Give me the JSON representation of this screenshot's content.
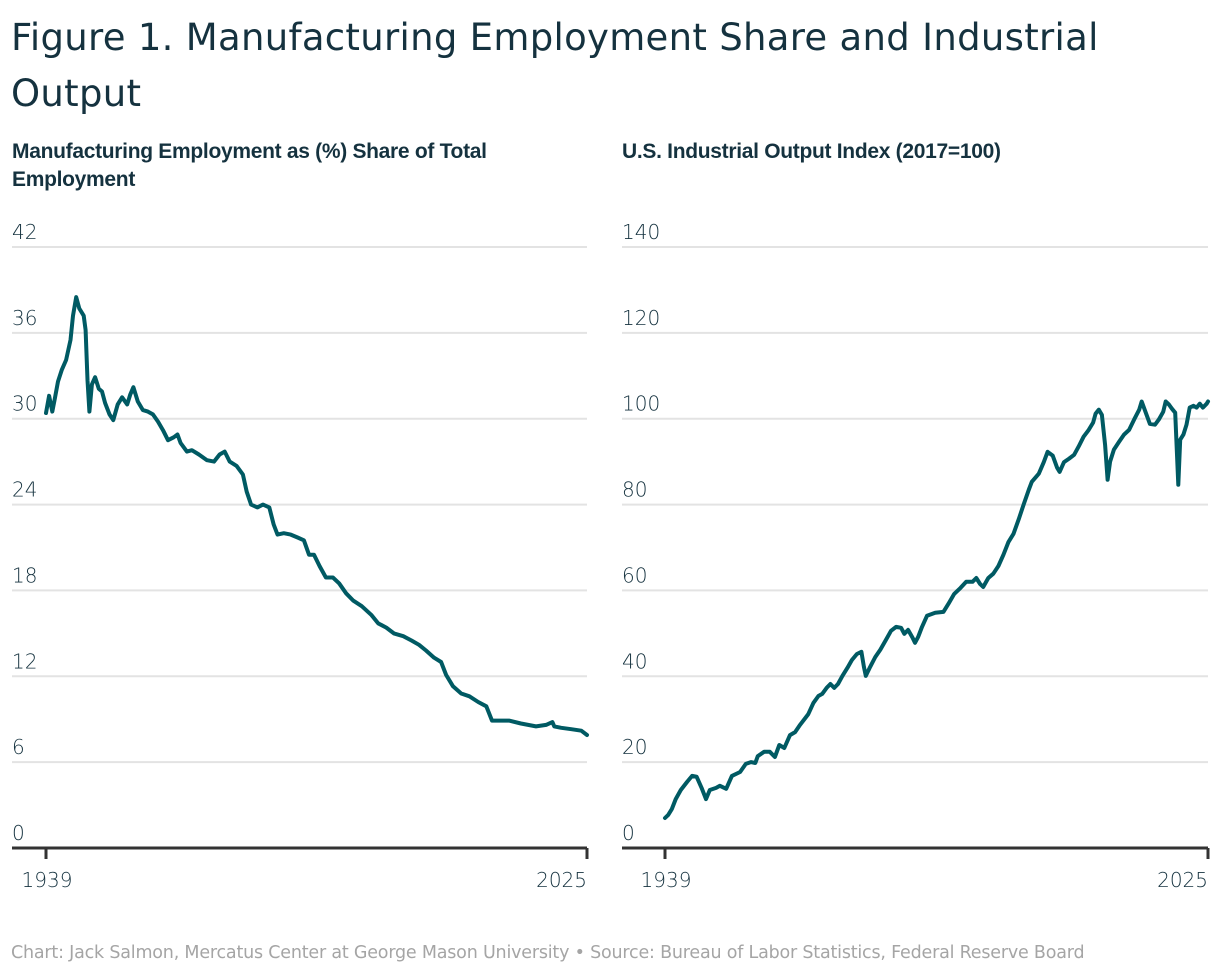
{
  "title": "Figure 1. Manufacturing Employment Share and Industrial Output",
  "footer": {
    "credit": "Chart: Jack Salmon, Mercatus Center at George Mason University",
    "separator": "•",
    "source": "Source: Bureau of Labor Statistics, Federal Reserve Board"
  },
  "colors": {
    "series": "#005a63",
    "title": "#15323f",
    "grid": "#e3e3e3",
    "axis": "#333333",
    "footer": "#a5a5a5"
  },
  "chart_data": [
    {
      "type": "line",
      "title": "Manufacturing Employment as (%) Share of Total Employment",
      "xlabel": "",
      "ylabel": "",
      "xlim": [
        1939,
        2025
      ],
      "ylim": [
        0,
        42
      ],
      "x_ticks": [
        1939,
        2025
      ],
      "y_ticks": [
        0,
        6,
        12,
        18,
        24,
        30,
        36,
        42
      ],
      "grid": true,
      "legend": "none",
      "series": [
        {
          "name": "Manufacturing employment share (%)",
          "points": [
            [
              1939.0,
              30.4
            ],
            [
              1939.5,
              31.6
            ],
            [
              1940.0,
              30.5
            ],
            [
              1940.4,
              31.4
            ],
            [
              1940.9,
              32.6
            ],
            [
              1941.5,
              33.4
            ],
            [
              1942.2,
              34.1
            ],
            [
              1942.9,
              35.5
            ],
            [
              1943.3,
              37.2
            ],
            [
              1943.8,
              38.5
            ],
            [
              1944.3,
              37.7
            ],
            [
              1945.0,
              37.2
            ],
            [
              1945.3,
              36.2
            ],
            [
              1945.6,
              32.7
            ],
            [
              1945.9,
              30.5
            ],
            [
              1946.3,
              32.4
            ],
            [
              1946.8,
              32.9
            ],
            [
              1947.4,
              32.1
            ],
            [
              1947.9,
              31.9
            ],
            [
              1948.4,
              31.1
            ],
            [
              1949.1,
              30.3
            ],
            [
              1949.7,
              29.9
            ],
            [
              1950.4,
              31.0
            ],
            [
              1951.1,
              31.5
            ],
            [
              1951.9,
              31.0
            ],
            [
              1952.4,
              31.7
            ],
            [
              1952.9,
              32.2
            ],
            [
              1953.6,
              31.2
            ],
            [
              1954.4,
              30.6
            ],
            [
              1955.2,
              30.5
            ],
            [
              1956.0,
              30.3
            ],
            [
              1956.8,
              29.8
            ],
            [
              1957.6,
              29.2
            ],
            [
              1958.4,
              28.5
            ],
            [
              1959.3,
              28.7
            ],
            [
              1959.9,
              28.9
            ],
            [
              1960.4,
              28.3
            ],
            [
              1961.4,
              27.7
            ],
            [
              1962.2,
              27.8
            ],
            [
              1963.3,
              27.5
            ],
            [
              1964.6,
              27.1
            ],
            [
              1965.7,
              27.0
            ],
            [
              1966.6,
              27.5
            ],
            [
              1967.4,
              27.7
            ],
            [
              1968.2,
              27.0
            ],
            [
              1969.3,
              26.7
            ],
            [
              1970.3,
              26.1
            ],
            [
              1970.9,
              24.9
            ],
            [
              1971.6,
              24.0
            ],
            [
              1972.6,
              23.8
            ],
            [
              1973.5,
              24.0
            ],
            [
              1974.5,
              23.8
            ],
            [
              1975.2,
              22.6
            ],
            [
              1975.8,
              21.9
            ],
            [
              1976.8,
              22.0
            ],
            [
              1977.9,
              21.9
            ],
            [
              1979.0,
              21.7
            ],
            [
              1980.0,
              21.5
            ],
            [
              1980.8,
              20.5
            ],
            [
              1981.6,
              20.5
            ],
            [
              1982.5,
              19.7
            ],
            [
              1983.5,
              18.9
            ],
            [
              1984.6,
              18.9
            ],
            [
              1985.6,
              18.5
            ],
            [
              1986.7,
              17.8
            ],
            [
              1987.8,
              17.3
            ],
            [
              1989.2,
              16.9
            ],
            [
              1990.7,
              16.3
            ],
            [
              1991.8,
              15.7
            ],
            [
              1993.1,
              15.4
            ],
            [
              1994.3,
              15.0
            ],
            [
              1995.8,
              14.8
            ],
            [
              1997.1,
              14.5
            ],
            [
              1998.3,
              14.2
            ],
            [
              1999.4,
              13.8
            ],
            [
              2000.7,
              13.3
            ],
            [
              2001.8,
              13.0
            ],
            [
              2002.6,
              12.1
            ],
            [
              2003.7,
              11.3
            ],
            [
              2005.0,
              10.8
            ],
            [
              2006.3,
              10.6
            ],
            [
              2007.7,
              10.2
            ],
            [
              2009.0,
              9.9
            ],
            [
              2009.9,
              8.9
            ],
            [
              2010.9,
              8.9
            ],
            [
              2012.6,
              8.9
            ],
            [
              2014.5,
              8.7
            ],
            [
              2016.9,
              8.5
            ],
            [
              2018.5,
              8.6
            ],
            [
              2019.5,
              8.8
            ],
            [
              2019.8,
              8.5
            ],
            [
              2020.9,
              8.4
            ],
            [
              2022.5,
              8.3
            ],
            [
              2024.1,
              8.2
            ],
            [
              2025.0,
              7.9
            ]
          ]
        }
      ]
    },
    {
      "type": "line",
      "title": "U.S. Industrial Output Index (2017=100)",
      "xlabel": "",
      "ylabel": "",
      "xlim": [
        1939,
        2025
      ],
      "ylim": [
        0,
        140
      ],
      "x_ticks": [
        1939,
        2025
      ],
      "y_ticks": [
        0,
        20,
        40,
        60,
        80,
        100,
        120,
        140
      ],
      "grid": true,
      "legend": "none",
      "series": [
        {
          "name": "Industrial output index",
          "points": [
            [
              1939.0,
              7.0
            ],
            [
              1939.5,
              7.7
            ],
            [
              1940.1,
              9.1
            ],
            [
              1940.7,
              11.4
            ],
            [
              1941.5,
              13.5
            ],
            [
              1942.5,
              15.4
            ],
            [
              1943.3,
              16.8
            ],
            [
              1944.0,
              16.6
            ],
            [
              1944.8,
              14.0
            ],
            [
              1945.5,
              11.4
            ],
            [
              1946.1,
              13.5
            ],
            [
              1947.1,
              14.0
            ],
            [
              1947.7,
              14.5
            ],
            [
              1948.7,
              13.8
            ],
            [
              1949.6,
              16.8
            ],
            [
              1950.9,
              17.7
            ],
            [
              1951.8,
              19.6
            ],
            [
              1952.6,
              20.0
            ],
            [
              1953.3,
              19.8
            ],
            [
              1953.7,
              21.4
            ],
            [
              1954.7,
              22.4
            ],
            [
              1955.6,
              22.4
            ],
            [
              1956.4,
              21.2
            ],
            [
              1957.1,
              24.0
            ],
            [
              1957.9,
              23.3
            ],
            [
              1958.8,
              26.3
            ],
            [
              1959.6,
              27.0
            ],
            [
              1960.4,
              28.7
            ],
            [
              1961.7,
              31.2
            ],
            [
              1962.5,
              33.8
            ],
            [
              1963.3,
              35.4
            ],
            [
              1963.9,
              35.9
            ],
            [
              1964.6,
              37.3
            ],
            [
              1965.2,
              38.2
            ],
            [
              1965.8,
              37.3
            ],
            [
              1966.4,
              38.2
            ],
            [
              1967.1,
              40.1
            ],
            [
              1967.9,
              42.0
            ],
            [
              1968.6,
              43.8
            ],
            [
              1969.4,
              45.2
            ],
            [
              1970.1,
              45.7
            ],
            [
              1970.5,
              42.2
            ],
            [
              1970.8,
              40.1
            ],
            [
              1971.5,
              42.2
            ],
            [
              1972.3,
              44.5
            ],
            [
              1973.1,
              46.2
            ],
            [
              1974.0,
              48.5
            ],
            [
              1974.8,
              50.6
            ],
            [
              1975.6,
              51.5
            ],
            [
              1976.4,
              51.3
            ],
            [
              1976.9,
              49.9
            ],
            [
              1977.5,
              50.8
            ],
            [
              1978.2,
              49.0
            ],
            [
              1978.6,
              47.8
            ],
            [
              1979.1,
              49.2
            ],
            [
              1979.7,
              51.5
            ],
            [
              1980.5,
              54.1
            ],
            [
              1981.8,
              54.8
            ],
            [
              1983.1,
              55.0
            ],
            [
              1983.9,
              56.9
            ],
            [
              1984.8,
              59.2
            ],
            [
              1985.8,
              60.6
            ],
            [
              1986.7,
              62.0
            ],
            [
              1987.7,
              62.0
            ],
            [
              1988.3,
              62.9
            ],
            [
              1988.9,
              61.5
            ],
            [
              1989.4,
              60.8
            ],
            [
              1990.2,
              62.9
            ],
            [
              1991.0,
              63.9
            ],
            [
              1991.8,
              65.7
            ],
            [
              1992.6,
              68.3
            ],
            [
              1993.4,
              71.3
            ],
            [
              1994.2,
              73.2
            ],
            [
              1995.0,
              76.5
            ],
            [
              1995.8,
              80.0
            ],
            [
              1996.6,
              83.4
            ],
            [
              1997.1,
              85.3
            ],
            [
              1998.2,
              87.2
            ],
            [
              1999.0,
              89.9
            ],
            [
              1999.6,
              92.3
            ],
            [
              2000.4,
              91.4
            ],
            [
              2001.1,
              88.6
            ],
            [
              2001.5,
              87.6
            ],
            [
              2002.2,
              89.9
            ],
            [
              2003.0,
              90.7
            ],
            [
              2003.8,
              91.6
            ],
            [
              2004.5,
              93.5
            ],
            [
              2005.3,
              95.8
            ],
            [
              2006.1,
              97.4
            ],
            [
              2006.8,
              99.1
            ],
            [
              2007.2,
              101.2
            ],
            [
              2007.7,
              102.1
            ],
            [
              2008.2,
              100.9
            ],
            [
              2008.7,
              93.9
            ],
            [
              2009.1,
              85.8
            ],
            [
              2009.5,
              90.0
            ],
            [
              2010.1,
              92.8
            ],
            [
              2010.9,
              94.6
            ],
            [
              2011.7,
              96.3
            ],
            [
              2012.5,
              97.4
            ],
            [
              2013.3,
              99.8
            ],
            [
              2014.1,
              102.1
            ],
            [
              2014.5,
              104.0
            ],
            [
              2015.2,
              101.2
            ],
            [
              2015.8,
              98.8
            ],
            [
              2016.6,
              98.6
            ],
            [
              2017.2,
              99.8
            ],
            [
              2017.9,
              101.6
            ],
            [
              2018.3,
              104.0
            ],
            [
              2018.8,
              103.3
            ],
            [
              2019.3,
              102.3
            ],
            [
              2019.8,
              101.4
            ],
            [
              2020.3,
              84.6
            ],
            [
              2020.6,
              95.1
            ],
            [
              2021.1,
              96.3
            ],
            [
              2021.6,
              98.6
            ],
            [
              2022.1,
              102.6
            ],
            [
              2022.7,
              103.0
            ],
            [
              2023.2,
              102.6
            ],
            [
              2023.7,
              103.5
            ],
            [
              2024.2,
              102.6
            ],
            [
              2024.8,
              103.5
            ],
            [
              2025.0,
              104.0
            ]
          ]
        }
      ]
    }
  ]
}
